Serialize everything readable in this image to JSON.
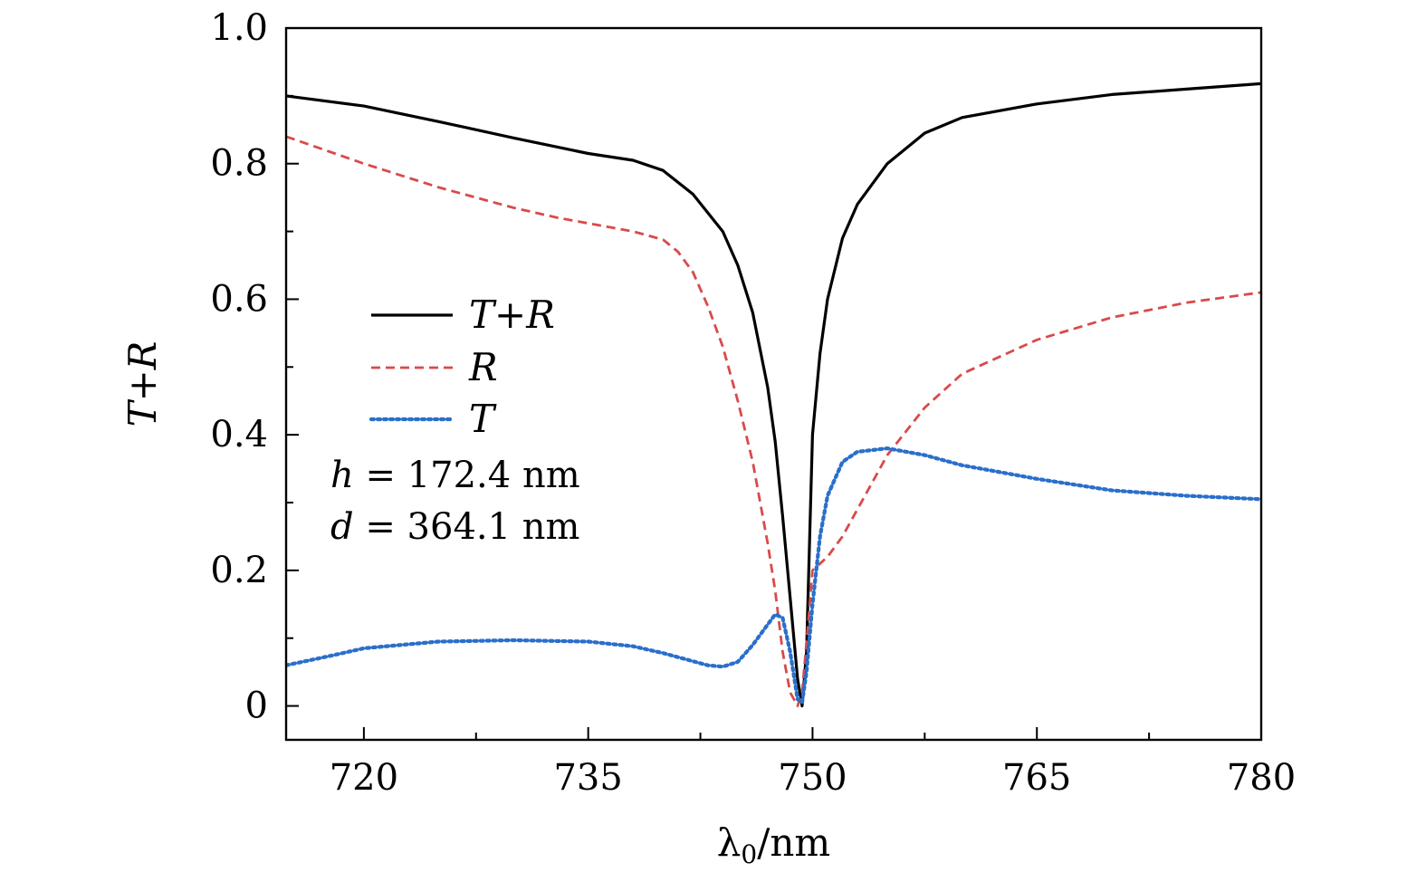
{
  "chart_data": {
    "type": "line",
    "xlabel": "λ0/nm",
    "ylabel": "T+R",
    "xlim": [
      714.8,
      780
    ],
    "ylim": [
      -0.05,
      1.0
    ],
    "x_ticks": [
      720,
      735,
      750,
      765,
      780
    ],
    "x_tick_labels": [
      "720",
      "735",
      "750",
      "765",
      "780"
    ],
    "x_minor_ticks": [
      727.5,
      742.5,
      757.5,
      772.5
    ],
    "y_ticks": [
      0,
      0.2,
      0.4,
      0.6,
      0.8,
      1.0
    ],
    "y_tick_labels": [
      "0",
      "0.2",
      "0.4",
      "0.6",
      "0.8",
      "1.0"
    ],
    "y_minor_ticks": [
      0.1,
      0.3,
      0.5,
      0.7,
      0.9
    ],
    "grid": false,
    "legend_position": "center-left",
    "annotations": [
      {
        "var": "h",
        "text": " = 172.4 nm"
      },
      {
        "var": "d",
        "text": " = 364.1 nm"
      }
    ],
    "series": [
      {
        "name": "T+R",
        "color": "#000000",
        "style": "solid",
        "x": [
          714.8,
          720,
          725,
          730,
          735,
          738,
          740,
          742,
          744,
          745,
          746,
          747,
          747.5,
          748,
          748.5,
          749,
          749.3,
          749.6,
          750,
          750.5,
          751,
          752,
          753,
          755,
          757.5,
          760,
          765,
          770,
          775,
          780
        ],
        "y": [
          0.9,
          0.885,
          0.862,
          0.838,
          0.815,
          0.805,
          0.79,
          0.755,
          0.7,
          0.65,
          0.58,
          0.47,
          0.39,
          0.28,
          0.16,
          0.04,
          0.0,
          0.08,
          0.4,
          0.52,
          0.6,
          0.69,
          0.74,
          0.8,
          0.845,
          0.868,
          0.888,
          0.902,
          0.91,
          0.918
        ]
      },
      {
        "name": "R",
        "color": "#d94a4a",
        "style": "dashed",
        "x": [
          714.8,
          720,
          725,
          730,
          733,
          735,
          738,
          740,
          741,
          742,
          743,
          744,
          745,
          746,
          747,
          747.5,
          748,
          748.5,
          749,
          749.3,
          749.7,
          750,
          750.5,
          751,
          752,
          753,
          755,
          757.5,
          760,
          765,
          770,
          775,
          780
        ],
        "y": [
          0.84,
          0.8,
          0.765,
          0.735,
          0.72,
          0.712,
          0.7,
          0.688,
          0.67,
          0.64,
          0.59,
          0.53,
          0.45,
          0.36,
          0.24,
          0.17,
          0.08,
          0.02,
          0.0,
          0.02,
          0.12,
          0.2,
          0.21,
          0.22,
          0.25,
          0.29,
          0.37,
          0.44,
          0.49,
          0.54,
          0.573,
          0.595,
          0.61
        ]
      },
      {
        "name": "T",
        "color": "#2a6fcb",
        "style": "dotted",
        "x": [
          714.8,
          718,
          720,
          725,
          730,
          735,
          738,
          740,
          742,
          743,
          744,
          745,
          746,
          747,
          747.5,
          748,
          748.5,
          749,
          749.3,
          749.6,
          750,
          750.5,
          751,
          752,
          753,
          755,
          757.5,
          760,
          765,
          770,
          775,
          780
        ],
        "y": [
          0.06,
          0.075,
          0.085,
          0.095,
          0.097,
          0.095,
          0.088,
          0.078,
          0.066,
          0.06,
          0.058,
          0.065,
          0.09,
          0.12,
          0.135,
          0.13,
          0.08,
          0.01,
          0.005,
          0.05,
          0.15,
          0.25,
          0.31,
          0.36,
          0.375,
          0.38,
          0.37,
          0.355,
          0.335,
          0.318,
          0.31,
          0.305
        ]
      }
    ]
  }
}
